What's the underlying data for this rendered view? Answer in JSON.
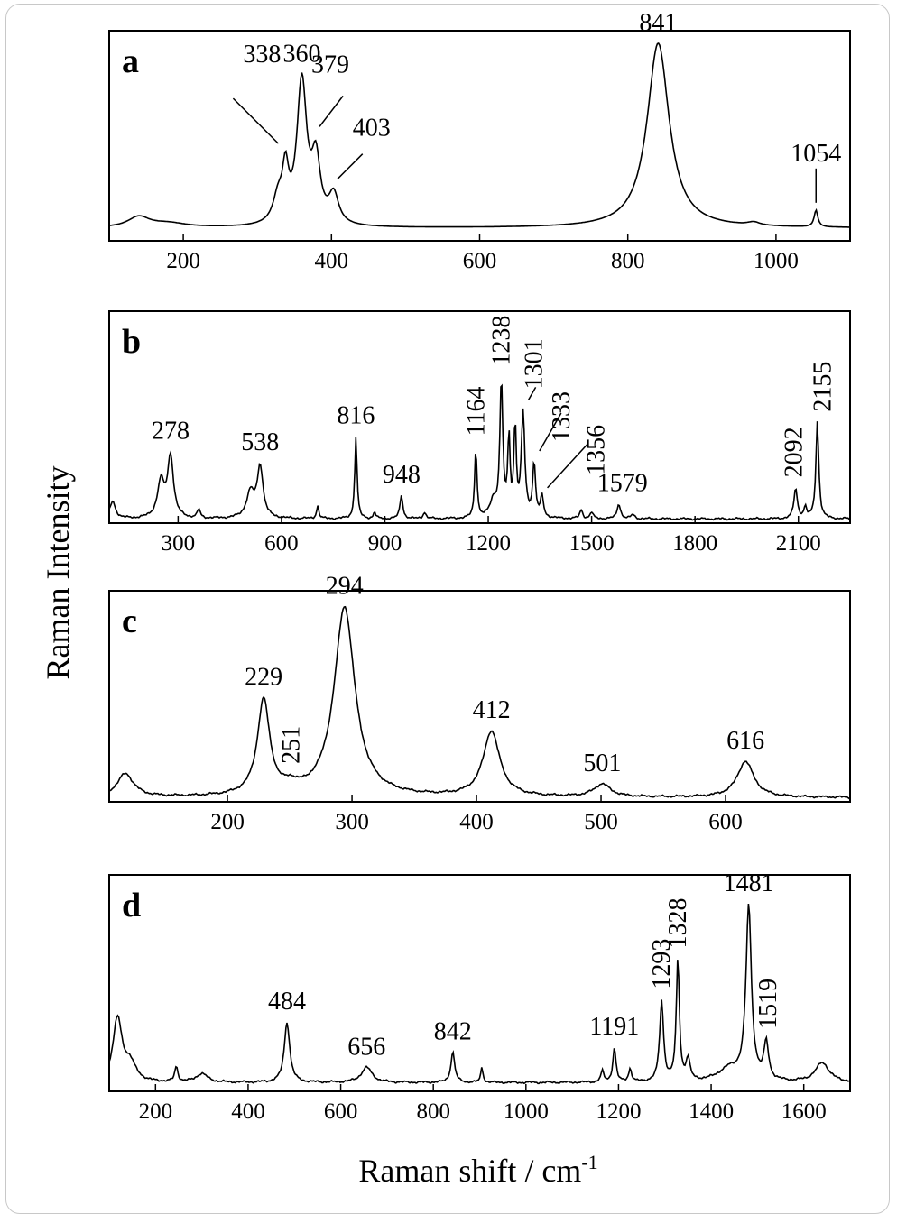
{
  "y_axis_label": "Raman Intensity",
  "x_axis_label": "Raman shift / cm",
  "x_axis_label_sup": "-1",
  "chart_data": [
    {
      "type": "line",
      "panel": "a",
      "xlim": [
        100,
        1100
      ],
      "xticks": [
        200,
        400,
        600,
        800,
        1000
      ],
      "baseline": 0.06,
      "peaks": [
        {
          "x": 140,
          "h": 0.05,
          "w": 18
        },
        {
          "x": 180,
          "h": 0.02,
          "w": 30
        },
        {
          "x": 328,
          "h": 0.12,
          "w": 8
        },
        {
          "x": 338,
          "h": 0.23,
          "w": 5
        },
        {
          "x": 360,
          "h": 0.68,
          "w": 8
        },
        {
          "x": 379,
          "h": 0.29,
          "w": 7
        },
        {
          "x": 403,
          "h": 0.14,
          "w": 8
        },
        {
          "x": 841,
          "h": 0.88,
          "w": 18
        },
        {
          "x": 970,
          "h": 0.015,
          "w": 10
        },
        {
          "x": 1054,
          "h": 0.08,
          "w": 3
        }
      ],
      "labels": [
        {
          "text": "338",
          "x": 338
        },
        {
          "text": "360",
          "x": 360
        },
        {
          "text": "379",
          "x": 379
        },
        {
          "text": "403",
          "x": 403
        },
        {
          "text": "841",
          "x": 841
        },
        {
          "text": "1054",
          "x": 1054
        }
      ]
    },
    {
      "type": "line",
      "panel": "b",
      "xlim": [
        100,
        2250
      ],
      "xticks": [
        300,
        600,
        900,
        1200,
        1500,
        1800,
        2100
      ],
      "baseline": 0.02,
      "peaks": [
        {
          "x": 110,
          "h": 0.08,
          "w": 10
        },
        {
          "x": 250,
          "h": 0.17,
          "w": 12
        },
        {
          "x": 278,
          "h": 0.29,
          "w": 10
        },
        {
          "x": 360,
          "h": 0.04,
          "w": 5
        },
        {
          "x": 510,
          "h": 0.12,
          "w": 14
        },
        {
          "x": 538,
          "h": 0.24,
          "w": 10
        },
        {
          "x": 705,
          "h": 0.06,
          "w": 4
        },
        {
          "x": 816,
          "h": 0.39,
          "w": 4
        },
        {
          "x": 870,
          "h": 0.03,
          "w": 4
        },
        {
          "x": 948,
          "h": 0.11,
          "w": 5
        },
        {
          "x": 1015,
          "h": 0.03,
          "w": 5
        },
        {
          "x": 1164,
          "h": 0.33,
          "w": 4
        },
        {
          "x": 1215,
          "h": 0.08,
          "w": 12
        },
        {
          "x": 1238,
          "h": 0.64,
          "w": 5
        },
        {
          "x": 1260,
          "h": 0.37,
          "w": 4
        },
        {
          "x": 1278,
          "h": 0.43,
          "w": 4
        },
        {
          "x": 1301,
          "h": 0.49,
          "w": 6
        },
        {
          "x": 1333,
          "h": 0.25,
          "w": 5
        },
        {
          "x": 1356,
          "h": 0.1,
          "w": 5
        },
        {
          "x": 1470,
          "h": 0.04,
          "w": 5
        },
        {
          "x": 1500,
          "h": 0.03,
          "w": 5
        },
        {
          "x": 1579,
          "h": 0.07,
          "w": 6
        },
        {
          "x": 1620,
          "h": 0.02,
          "w": 6
        },
        {
          "x": 2092,
          "h": 0.14,
          "w": 6
        },
        {
          "x": 2120,
          "h": 0.05,
          "w": 5
        },
        {
          "x": 2155,
          "h": 0.46,
          "w": 5
        }
      ],
      "labels": [
        {
          "text": "278",
          "x": 278
        },
        {
          "text": "538",
          "x": 538
        },
        {
          "text": "816",
          "x": 816
        },
        {
          "text": "948",
          "x": 948
        },
        {
          "text": "1164",
          "x": 1164,
          "rotated": true
        },
        {
          "text": "1238",
          "x": 1238,
          "rotated": true
        },
        {
          "text": "1301",
          "x": 1301,
          "rotated": true
        },
        {
          "text": "1333",
          "x": 1333,
          "rotated": true
        },
        {
          "text": "1356",
          "x": 1356,
          "rotated": true
        },
        {
          "text": "1579",
          "x": 1579
        },
        {
          "text": "2092",
          "x": 2092,
          "rotated": true
        },
        {
          "text": "2155",
          "x": 2155,
          "rotated": true
        }
      ]
    },
    {
      "type": "line",
      "panel": "c",
      "xlim": [
        105,
        700
      ],
      "xticks": [
        200,
        300,
        400,
        500,
        600
      ],
      "baseline": 0.02,
      "peaks": [
        {
          "x": 118,
          "h": 0.11,
          "w": 8
        },
        {
          "x": 229,
          "h": 0.45,
          "w": 6
        },
        {
          "x": 251,
          "h": 0.03,
          "w": 6
        },
        {
          "x": 294,
          "h": 0.9,
          "w": 10
        },
        {
          "x": 412,
          "h": 0.31,
          "w": 8
        },
        {
          "x": 501,
          "h": 0.06,
          "w": 8
        },
        {
          "x": 616,
          "h": 0.17,
          "w": 8
        }
      ],
      "labels": [
        {
          "text": "229",
          "x": 229
        },
        {
          "text": "251",
          "x": 251,
          "rotated": true
        },
        {
          "text": "294",
          "x": 294
        },
        {
          "text": "412",
          "x": 412
        },
        {
          "text": "501",
          "x": 501
        },
        {
          "text": "616",
          "x": 616
        }
      ]
    },
    {
      "type": "line",
      "panel": "d",
      "xlim": [
        100,
        1700
      ],
      "xticks": [
        200,
        400,
        600,
        800,
        1000,
        1200,
        1400,
        1600
      ],
      "baseline": 0.04,
      "peaks": [
        {
          "x": 118,
          "h": 0.29,
          "w": 12
        },
        {
          "x": 145,
          "h": 0.08,
          "w": 15
        },
        {
          "x": 245,
          "h": 0.07,
          "w": 4
        },
        {
          "x": 300,
          "h": 0.04,
          "w": 15
        },
        {
          "x": 484,
          "h": 0.28,
          "w": 7
        },
        {
          "x": 656,
          "h": 0.07,
          "w": 14
        },
        {
          "x": 842,
          "h": 0.14,
          "w": 5
        },
        {
          "x": 905,
          "h": 0.07,
          "w": 3
        },
        {
          "x": 1165,
          "h": 0.05,
          "w": 4
        },
        {
          "x": 1191,
          "h": 0.16,
          "w": 4
        },
        {
          "x": 1225,
          "h": 0.06,
          "w": 4
        },
        {
          "x": 1293,
          "h": 0.37,
          "w": 5
        },
        {
          "x": 1328,
          "h": 0.56,
          "w": 4
        },
        {
          "x": 1350,
          "h": 0.1,
          "w": 5
        },
        {
          "x": 1440,
          "h": 0.06,
          "w": 30
        },
        {
          "x": 1481,
          "h": 0.8,
          "w": 7
        },
        {
          "x": 1519,
          "h": 0.17,
          "w": 6
        },
        {
          "x": 1640,
          "h": 0.09,
          "w": 18
        }
      ],
      "labels": [
        {
          "text": "484",
          "x": 484
        },
        {
          "text": "656",
          "x": 656
        },
        {
          "text": "842",
          "x": 842
        },
        {
          "text": "1191",
          "x": 1191
        },
        {
          "text": "1293",
          "x": 1293,
          "rotated": true
        },
        {
          "text": "1328",
          "x": 1328,
          "rotated": true
        },
        {
          "text": "1481",
          "x": 1481
        },
        {
          "text": "1519",
          "x": 1519,
          "rotated": true
        }
      ]
    }
  ]
}
